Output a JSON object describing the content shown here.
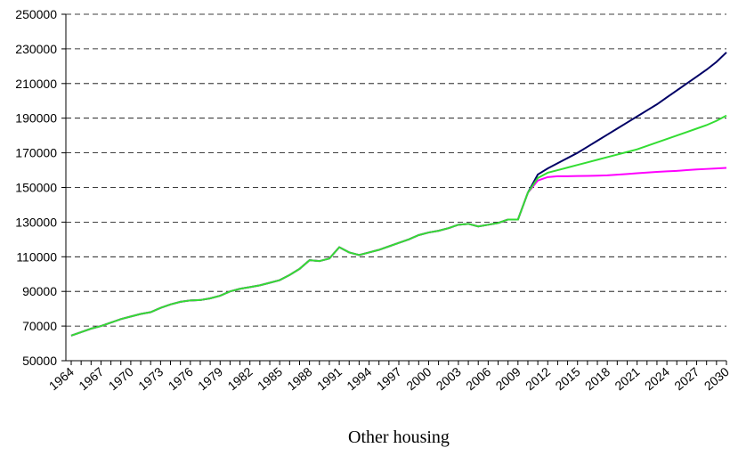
{
  "chart_data": {
    "type": "line",
    "title": "Other housing",
    "categories": [
      "1964",
      null,
      null,
      "1967",
      null,
      null,
      "1970",
      null,
      null,
      "1973",
      null,
      null,
      "1976",
      null,
      null,
      "1979",
      null,
      null,
      "1982",
      null,
      null,
      "1985",
      null,
      null,
      "1988",
      null,
      null,
      "1991",
      null,
      null,
      "1994",
      null,
      null,
      "1997",
      null,
      null,
      "2000",
      null,
      null,
      "2003",
      null,
      null,
      "2006",
      null,
      null,
      "2009",
      null,
      null,
      "2012",
      null,
      null,
      "2015",
      null,
      null,
      "2018",
      null,
      null,
      "2021",
      null,
      null,
      "2024",
      null,
      null,
      "2027",
      null,
      null,
      "2030"
    ],
    "series": [
      {
        "color": "#000066",
        "values": [
          64500,
          66500,
          68500,
          70000,
          72000,
          74000,
          75500,
          77000,
          78000,
          80500,
          82500,
          84000,
          84800,
          85000,
          86000,
          87500,
          90000,
          91500,
          92500,
          93500,
          95000,
          96500,
          99500,
          103000,
          108000,
          107500,
          109000,
          115500,
          112500,
          111000,
          112500,
          114000,
          116000,
          118000,
          120000,
          122500,
          124000,
          125000,
          126500,
          128500,
          129000,
          127500,
          128500,
          129500,
          131500,
          131500,
          147000,
          157500,
          161000,
          164000,
          167000,
          170000,
          173500,
          177000,
          180500,
          184000,
          187500,
          191000,
          194500,
          198000,
          202000,
          206000,
          210000,
          214000,
          218000,
          222500,
          228000
        ]
      },
      {
        "color": "#ff00ff",
        "values": [
          64500,
          66500,
          68500,
          70000,
          72000,
          74000,
          75500,
          77000,
          78000,
          80500,
          82500,
          84000,
          84800,
          85000,
          86000,
          87500,
          90000,
          91500,
          92500,
          93500,
          95000,
          96500,
          99500,
          103000,
          108000,
          107500,
          109000,
          115500,
          112500,
          111000,
          112500,
          114000,
          116000,
          118000,
          120000,
          122500,
          124000,
          125000,
          126500,
          128500,
          129000,
          127500,
          128500,
          129500,
          131500,
          131500,
          147000,
          154000,
          156000,
          156500,
          156500,
          156600,
          156700,
          156800,
          157000,
          157400,
          157800,
          158200,
          158600,
          159000,
          159300,
          159600,
          160000,
          160400,
          160700,
          161000,
          161300
        ]
      },
      {
        "color": "#33dd33",
        "values": [
          64500,
          66500,
          68500,
          70000,
          72000,
          74000,
          75500,
          77000,
          78000,
          80500,
          82500,
          84000,
          84800,
          85000,
          86000,
          87500,
          90000,
          91500,
          92500,
          93500,
          95000,
          96500,
          99500,
          103000,
          108000,
          107500,
          109000,
          115500,
          112500,
          111000,
          112500,
          114000,
          116000,
          118000,
          120000,
          122500,
          124000,
          125000,
          126500,
          128500,
          129000,
          127500,
          128500,
          129500,
          131500,
          131500,
          147000,
          155500,
          158500,
          160000,
          161500,
          163000,
          164500,
          166000,
          167500,
          169000,
          170500,
          172000,
          174000,
          176000,
          178000,
          180000,
          182000,
          184000,
          186000,
          188500,
          191500
        ]
      }
    ],
    "ylim": [
      50000,
      250000
    ],
    "yticks": [
      50000,
      70000,
      90000,
      110000,
      130000,
      150000,
      170000,
      190000,
      210000,
      230000,
      250000
    ],
    "grid": true
  }
}
